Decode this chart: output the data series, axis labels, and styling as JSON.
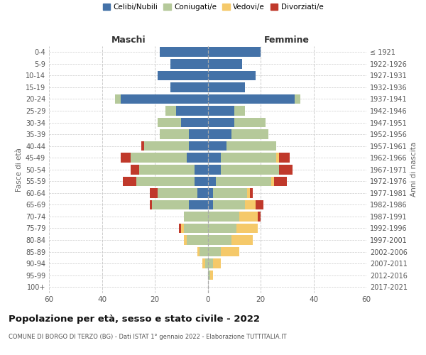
{
  "age_groups": [
    "0-4",
    "5-9",
    "10-14",
    "15-19",
    "20-24",
    "25-29",
    "30-34",
    "35-39",
    "40-44",
    "45-49",
    "50-54",
    "55-59",
    "60-64",
    "65-69",
    "70-74",
    "75-79",
    "80-84",
    "85-89",
    "90-94",
    "95-99",
    "100+"
  ],
  "birth_years": [
    "2017-2021",
    "2012-2016",
    "2007-2011",
    "2002-2006",
    "1997-2001",
    "1992-1996",
    "1987-1991",
    "1982-1986",
    "1977-1981",
    "1972-1976",
    "1967-1971",
    "1962-1966",
    "1957-1961",
    "1952-1956",
    "1947-1951",
    "1942-1946",
    "1937-1941",
    "1932-1936",
    "1927-1931",
    "1922-1926",
    "≤ 1921"
  ],
  "male": {
    "celibi": [
      18,
      14,
      19,
      14,
      33,
      12,
      10,
      7,
      7,
      8,
      5,
      5,
      4,
      7,
      0,
      0,
      0,
      0,
      0,
      0,
      0
    ],
    "coniugati": [
      0,
      0,
      0,
      0,
      2,
      4,
      9,
      11,
      17,
      21,
      21,
      22,
      15,
      14,
      9,
      9,
      8,
      3,
      1,
      0,
      0
    ],
    "vedovi": [
      0,
      0,
      0,
      0,
      0,
      0,
      0,
      0,
      0,
      0,
      0,
      0,
      0,
      0,
      0,
      1,
      1,
      1,
      1,
      0,
      0
    ],
    "divorziati": [
      0,
      0,
      0,
      0,
      0,
      0,
      0,
      0,
      1,
      4,
      3,
      5,
      3,
      1,
      0,
      1,
      0,
      0,
      0,
      0,
      0
    ]
  },
  "female": {
    "nubili": [
      20,
      13,
      18,
      14,
      33,
      10,
      10,
      9,
      7,
      5,
      5,
      3,
      2,
      2,
      0,
      0,
      0,
      0,
      0,
      0,
      0
    ],
    "coniugate": [
      0,
      0,
      0,
      0,
      2,
      4,
      12,
      14,
      19,
      21,
      22,
      21,
      13,
      12,
      12,
      11,
      9,
      5,
      2,
      1,
      0
    ],
    "vedove": [
      0,
      0,
      0,
      0,
      0,
      0,
      0,
      0,
      0,
      1,
      0,
      1,
      1,
      4,
      7,
      8,
      8,
      7,
      3,
      1,
      0
    ],
    "divorziate": [
      0,
      0,
      0,
      0,
      0,
      0,
      0,
      0,
      0,
      4,
      5,
      5,
      1,
      3,
      1,
      0,
      0,
      0,
      0,
      0,
      0
    ]
  },
  "colors": {
    "celibi": "#4472a8",
    "coniugati": "#b5c99a",
    "vedovi": "#f5c96a",
    "divorziati": "#c0392b"
  },
  "xlim": 60,
  "title": "Popolazione per età, sesso e stato civile - 2022",
  "subtitle": "COMUNE DI BORGO DI TERZO (BG) - Dati ISTAT 1° gennaio 2022 - Elaborazione TUTTITALIA.IT",
  "xlabel_left": "Maschi",
  "xlabel_right": "Femmine",
  "ylabel_left": "Fasce di età",
  "ylabel_right": "Anni di nascita",
  "legend_labels": [
    "Celibi/Nubili",
    "Coniugati/e",
    "Vedovi/e",
    "Divorziati/e"
  ]
}
